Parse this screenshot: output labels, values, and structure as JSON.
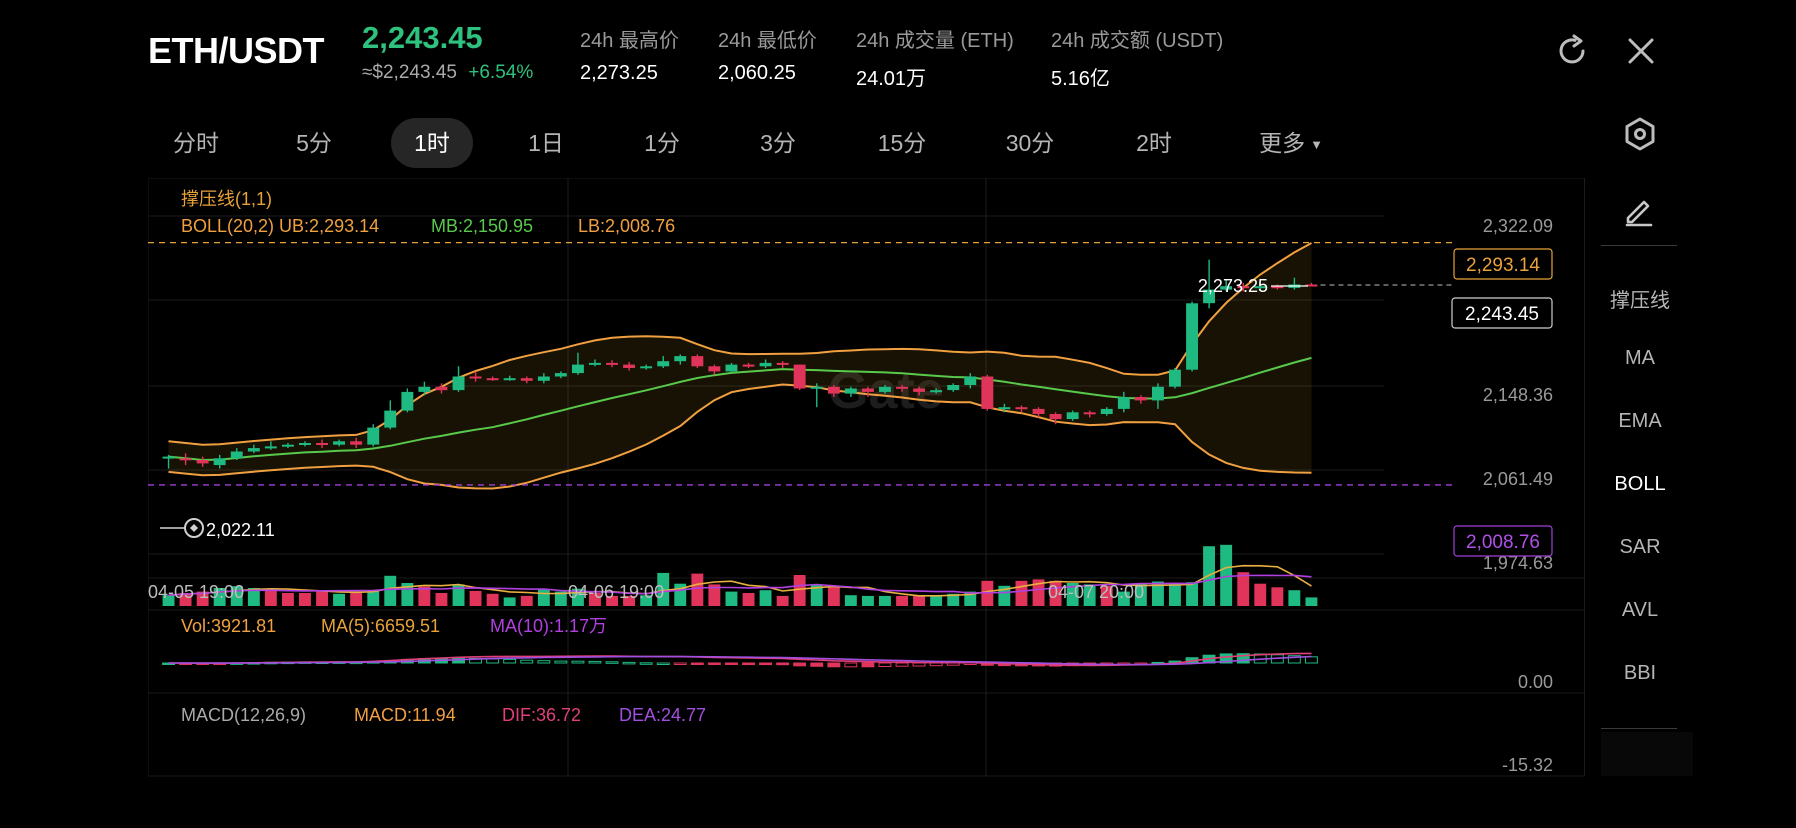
{
  "header": {
    "pair": "ETH/USDT",
    "price": "2,243.45",
    "usd_price": "≈$2,243.45",
    "change": "+6.54%",
    "stats": [
      {
        "label": "24h 最高价",
        "value": "2,273.25"
      },
      {
        "label": "24h 最低价",
        "value": "2,060.25"
      },
      {
        "label": "24h 成交量 (ETH)",
        "value": "24.01万"
      },
      {
        "label": "24h 成交额 (USDT)",
        "value": "5.16亿"
      }
    ]
  },
  "tabs": [
    {
      "label": "分时"
    },
    {
      "label": "5分"
    },
    {
      "label": "1时"
    },
    {
      "label": "1日"
    },
    {
      "label": "1分"
    },
    {
      "label": "3分"
    },
    {
      "label": "15分"
    },
    {
      "label": "30分"
    },
    {
      "label": "2时"
    },
    {
      "label": "更多"
    }
  ],
  "active_tab": "1时",
  "sidebar": {
    "items": [
      "撑压线",
      "MA",
      "EMA",
      "BOLL",
      "SAR",
      "AVL",
      "BBI"
    ],
    "active": "BOLL"
  },
  "indicators": {
    "support_resistance": "撑压线(1,1)",
    "boll_ub": "BOLL(20,2) UB:2,293.14",
    "boll_mb": "MB:2,150.95",
    "boll_lb": "LB:2,008.76",
    "vol": "Vol:3921.81",
    "vol_ma5": "MA(5):6659.51",
    "vol_ma10": "MA(10):1.17万",
    "macd_label": "MACD(12,26,9)",
    "macd": "MACD:11.94",
    "dif": "DIF:36.72",
    "dea": "DEA:24.77"
  },
  "chart_data": {
    "type": "candlestick",
    "price_axis_ticks": [
      "2,322.09",
      "2,148.36",
      "2,061.49",
      "1,974.63"
    ],
    "time_axis_labels": [
      "04-05 19:00",
      "04-06 19:00",
      "04-07 20:00"
    ],
    "resistance_label": "2,293.14",
    "current_price_label": "2,243.45",
    "support_label": "2,008.76",
    "high_marker": "2,273.25",
    "low_marker": "2,022.11",
    "ylim": [
      1974.63,
      2322.09
    ],
    "volume_zero_label": "0.00",
    "macd_min_label": "-15.32",
    "colors": {
      "up": "#1fb982",
      "down": "#e0345a",
      "ub": "#f0a040",
      "mb": "#58c94b",
      "lb": "#f0a040",
      "resistance": "#e8a23a",
      "support": "#a040d8"
    },
    "candles": [
      [
        2040,
        2042,
        2028,
        2044
      ],
      [
        2040,
        2038,
        2032,
        2046
      ],
      [
        2038,
        2034,
        2030,
        2042
      ],
      [
        2032,
        2040,
        2028,
        2044
      ],
      [
        2040,
        2048,
        2038,
        2052
      ],
      [
        2048,
        2052,
        2046,
        2056
      ],
      [
        2052,
        2054,
        2050,
        2060
      ],
      [
        2054,
        2056,
        2052,
        2058
      ],
      [
        2056,
        2058,
        2054,
        2060
      ],
      [
        2058,
        2056,
        2052,
        2062
      ],
      [
        2056,
        2060,
        2054,
        2062
      ],
      [
        2060,
        2056,
        2052,
        2064
      ],
      [
        2056,
        2076,
        2054,
        2080
      ],
      [
        2076,
        2096,
        2074,
        2108
      ],
      [
        2096,
        2118,
        2094,
        2122
      ],
      [
        2118,
        2124,
        2114,
        2130
      ],
      [
        2124,
        2120,
        2116,
        2128
      ],
      [
        2120,
        2136,
        2118,
        2148
      ],
      [
        2136,
        2134,
        2130,
        2142
      ],
      [
        2134,
        2133,
        2131,
        2136
      ],
      [
        2133,
        2134,
        2131,
        2137
      ],
      [
        2134,
        2131,
        2128,
        2136
      ],
      [
        2131,
        2136,
        2128,
        2140
      ],
      [
        2136,
        2140,
        2134,
        2142
      ],
      [
        2140,
        2150,
        2138,
        2164
      ],
      [
        2150,
        2152,
        2148,
        2156
      ],
      [
        2152,
        2150,
        2147,
        2155
      ],
      [
        2150,
        2146,
        2143,
        2153
      ],
      [
        2146,
        2148,
        2144,
        2150
      ],
      [
        2148,
        2154,
        2146,
        2160
      ],
      [
        2154,
        2160,
        2150,
        2162
      ],
      [
        2160,
        2148,
        2146,
        2162
      ],
      [
        2148,
        2142,
        2138,
        2150
      ],
      [
        2142,
        2150,
        2140,
        2152
      ],
      [
        2150,
        2148,
        2146,
        2152
      ],
      [
        2148,
        2152,
        2146,
        2156
      ],
      [
        2152,
        2150,
        2146,
        2154
      ],
      [
        2150,
        2122,
        2120,
        2150
      ],
      [
        2122,
        2124,
        2100,
        2128
      ],
      [
        2124,
        2116,
        2112,
        2126
      ],
      [
        2116,
        2122,
        2112,
        2124
      ],
      [
        2122,
        2118,
        2112,
        2124
      ],
      [
        2118,
        2124,
        2116,
        2126
      ],
      [
        2124,
        2122,
        2118,
        2126
      ],
      [
        2122,
        2118,
        2114,
        2124
      ],
      [
        2118,
        2120,
        2116,
        2122
      ],
      [
        2120,
        2126,
        2118,
        2128
      ],
      [
        2126,
        2136,
        2122,
        2140
      ],
      [
        2136,
        2098,
        2096,
        2138
      ],
      [
        2098,
        2100,
        2094,
        2104
      ],
      [
        2100,
        2098,
        2094,
        2102
      ],
      [
        2098,
        2092,
        2088,
        2100
      ],
      [
        2092,
        2086,
        2080,
        2094
      ],
      [
        2086,
        2094,
        2084,
        2096
      ],
      [
        2094,
        2092,
        2088,
        2096
      ],
      [
        2092,
        2098,
        2090,
        2100
      ],
      [
        2098,
        2112,
        2094,
        2118
      ],
      [
        2112,
        2108,
        2104,
        2114
      ],
      [
        2108,
        2124,
        2098,
        2128
      ],
      [
        2124,
        2144,
        2122,
        2146
      ],
      [
        2144,
        2222,
        2142,
        2224
      ],
      [
        2222,
        2238,
        2216,
        2273.25
      ],
      [
        2238,
        2242,
        2236,
        2250
      ],
      [
        2242,
        2240,
        2236,
        2246
      ],
      [
        2240,
        2242,
        2238,
        2246
      ],
      [
        2242,
        2240,
        2238,
        2244
      ],
      [
        2240,
        2244,
        2238,
        2252
      ],
      [
        2244,
        2243.45,
        2242,
        2246
      ]
    ],
    "volumes": [
      [
        0.3,
        0
      ],
      [
        0.36,
        1
      ],
      [
        0.4,
        1
      ],
      [
        0.5,
        0
      ],
      [
        0.55,
        0
      ],
      [
        0.5,
        0
      ],
      [
        0.44,
        1
      ],
      [
        0.36,
        1
      ],
      [
        0.36,
        1
      ],
      [
        0.44,
        1
      ],
      [
        0.34,
        0
      ],
      [
        0.4,
        1
      ],
      [
        0.44,
        0
      ],
      [
        0.84,
        0
      ],
      [
        0.64,
        0
      ],
      [
        0.54,
        1
      ],
      [
        0.36,
        1
      ],
      [
        0.6,
        0
      ],
      [
        0.42,
        1
      ],
      [
        0.34,
        1
      ],
      [
        0.24,
        0
      ],
      [
        0.28,
        1
      ],
      [
        0.46,
        0
      ],
      [
        0.4,
        0
      ],
      [
        0.48,
        0
      ],
      [
        0.36,
        1
      ],
      [
        0.28,
        1
      ],
      [
        0.28,
        1
      ],
      [
        0.3,
        0
      ],
      [
        0.92,
        0
      ],
      [
        0.62,
        0
      ],
      [
        0.9,
        1
      ],
      [
        0.6,
        1
      ],
      [
        0.4,
        0
      ],
      [
        0.36,
        1
      ],
      [
        0.44,
        0
      ],
      [
        0.28,
        1
      ],
      [
        0.86,
        1
      ],
      [
        0.6,
        0
      ],
      [
        0.54,
        1
      ],
      [
        0.3,
        0
      ],
      [
        0.28,
        0
      ],
      [
        0.28,
        0
      ],
      [
        0.28,
        1
      ],
      [
        0.28,
        1
      ],
      [
        0.3,
        0
      ],
      [
        0.34,
        0
      ],
      [
        0.4,
        0
      ],
      [
        0.7,
        1
      ],
      [
        0.56,
        0
      ],
      [
        0.7,
        1
      ],
      [
        0.74,
        1
      ],
      [
        0.7,
        1
      ],
      [
        0.64,
        0
      ],
      [
        0.6,
        0
      ],
      [
        0.56,
        1
      ],
      [
        0.4,
        0
      ],
      [
        0.64,
        0
      ],
      [
        0.68,
        0
      ],
      [
        0.64,
        0
      ],
      [
        0.66,
        0
      ],
      [
        1.66,
        0
      ],
      [
        1.7,
        0
      ],
      [
        0.94,
        1
      ],
      [
        0.62,
        1
      ],
      [
        0.52,
        1
      ],
      [
        0.44,
        0
      ],
      [
        0.24,
        0
      ]
    ]
  }
}
